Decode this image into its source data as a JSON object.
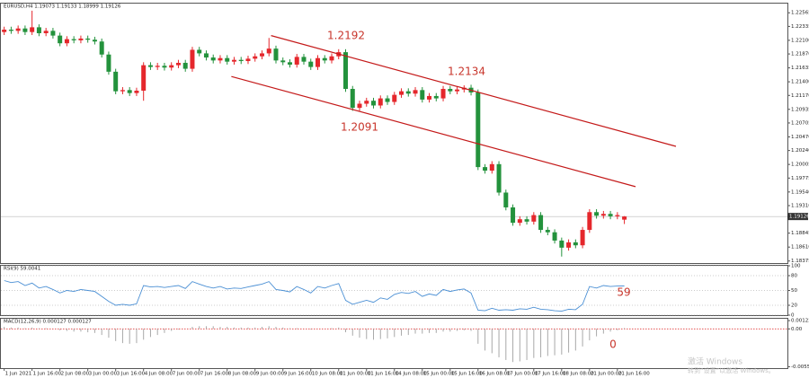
{
  "chart_data": [
    {
      "type": "candlestick",
      "title": "EURUSD,H4  1.19073 1.19133 1.18999 1.19126",
      "x": [
        "1 Jun 2021",
        null,
        null,
        null,
        "1 Jun 16:00",
        null,
        null,
        null,
        "2 Jun 08:00",
        null,
        null,
        null,
        "3 Jun 00:00",
        null,
        null,
        null,
        "3 Jun 16:00",
        null,
        null,
        null,
        "4 Jun 08:00",
        null,
        null,
        null,
        "7 Jun 00:00",
        null,
        null,
        null,
        "7 Jun 16:00",
        null,
        null,
        null,
        "8 Jun 08:00",
        null,
        null,
        null,
        "9 Jun 00:00",
        null,
        null,
        null,
        "9 Jun 16:00",
        null,
        null,
        null,
        "10 Jun 08:00",
        null,
        null,
        null,
        "11 Jun 00:00",
        null,
        null,
        null,
        "11 Jun 16:00",
        null,
        null,
        null,
        "14 Jun 08:00",
        null,
        null,
        null,
        "15 Jun 00:00",
        null,
        null,
        null,
        "15 Jun 16:00",
        null,
        null,
        null,
        "16 Jun 08:00",
        null,
        null,
        null,
        "17 Jun 00:00",
        null,
        null,
        null,
        "17 Jun 16:00",
        null,
        null,
        null,
        "18 Jun 08:00",
        null,
        null,
        null,
        "21 Jun 00:00",
        null,
        null,
        null,
        "21 Jun 16:00",
        null
      ],
      "open": [
        1.2224,
        1.2228,
        1.2226,
        1.223,
        1.2224,
        1.2232,
        1.2222,
        1.2226,
        1.2218,
        1.2205,
        1.2212,
        1.221,
        1.2213,
        1.2211,
        1.2208,
        1.2186,
        1.2157,
        1.2124,
        1.2126,
        1.2121,
        1.2125,
        1.2168,
        1.2165,
        1.2167,
        1.2164,
        1.2168,
        1.2172,
        1.2162,
        1.2194,
        1.2188,
        1.2181,
        1.2176,
        1.218,
        1.2174,
        1.2177,
        1.2175,
        1.2179,
        1.2183,
        1.2188,
        1.2196,
        1.2176,
        1.2173,
        1.2169,
        1.2182,
        1.2174,
        1.2165,
        1.218,
        1.2176,
        1.2183,
        1.219,
        1.2128,
        1.2096,
        1.2103,
        1.2108,
        1.21,
        1.2112,
        1.2106,
        1.2118,
        1.2124,
        1.212,
        1.2126,
        1.211,
        1.2116,
        1.2112,
        1.2128,
        1.2124,
        1.2127,
        1.213,
        1.2122,
        1.1996,
        1.199,
        1.2001,
        1.1953,
        1.1928,
        1.1902,
        1.1908,
        1.1904,
        1.1915,
        1.189,
        1.1886,
        1.1872,
        1.186,
        1.1869,
        1.1864,
        1.189,
        1.192,
        1.1914,
        1.1917,
        1.1913,
        1.19073
      ],
      "high": [
        1.2233,
        1.2233,
        1.2235,
        1.2235,
        1.226,
        1.2237,
        1.2231,
        1.2231,
        1.2223,
        1.2217,
        1.2217,
        1.2218,
        1.2218,
        1.2216,
        1.2213,
        1.2191,
        1.2162,
        1.2131,
        1.2131,
        1.213,
        1.2173,
        1.2173,
        1.2172,
        1.2172,
        1.2173,
        1.2177,
        1.2177,
        1.2199,
        1.2199,
        1.2193,
        1.2186,
        1.2185,
        1.2185,
        1.2182,
        1.2182,
        1.2184,
        1.2188,
        1.2193,
        1.2214,
        1.2201,
        1.2181,
        1.2178,
        1.2187,
        1.2187,
        1.2179,
        1.2185,
        1.2185,
        1.2188,
        1.2195,
        1.2195,
        1.2133,
        1.2108,
        1.2113,
        1.2113,
        1.2117,
        1.2117,
        1.2123,
        1.2129,
        1.2129,
        1.2131,
        1.2131,
        1.2121,
        1.2121,
        1.2133,
        1.2133,
        1.2132,
        1.2134,
        1.2135,
        1.2127,
        1.2001,
        1.2006,
        1.2006,
        1.1958,
        1.1933,
        1.1913,
        1.1913,
        1.192,
        1.192,
        1.1895,
        1.1891,
        1.1877,
        1.1874,
        1.1874,
        1.1895,
        1.1925,
        1.1925,
        1.1922,
        1.1922,
        1.192,
        1.19133
      ],
      "low": [
        1.2219,
        1.2221,
        1.2221,
        1.2219,
        1.2219,
        1.2217,
        1.2217,
        1.2213,
        1.22,
        1.22,
        1.2205,
        1.2205,
        1.2206,
        1.2203,
        1.2181,
        1.2152,
        1.2119,
        1.2119,
        1.2116,
        1.2116,
        1.2108,
        1.216,
        1.216,
        1.2159,
        1.2159,
        1.2163,
        1.2157,
        1.2157,
        1.2183,
        1.2176,
        1.2171,
        1.2171,
        1.2169,
        1.2169,
        1.217,
        1.217,
        1.2174,
        1.2178,
        1.2183,
        1.2171,
        1.2168,
        1.2164,
        1.2164,
        1.2169,
        1.216,
        1.216,
        1.2171,
        1.2171,
        1.2178,
        1.2123,
        1.2091,
        1.2091,
        1.2098,
        1.2095,
        1.2095,
        1.2101,
        1.2101,
        1.2113,
        1.2115,
        1.2115,
        1.2105,
        1.2105,
        1.2107,
        1.2107,
        1.2119,
        1.2119,
        1.2122,
        1.2117,
        1.1991,
        1.1985,
        1.1985,
        1.1948,
        1.1923,
        1.1897,
        1.1897,
        1.1899,
        1.1899,
        1.1885,
        1.1881,
        1.1867,
        1.1845,
        1.1855,
        1.1859,
        1.1859,
        1.1885,
        1.1909,
        1.1909,
        1.1908,
        1.1908,
        1.18999
      ],
      "close": [
        1.2228,
        1.2226,
        1.223,
        1.2224,
        1.2232,
        1.2222,
        1.2226,
        1.2218,
        1.2205,
        1.2212,
        1.221,
        1.2213,
        1.2211,
        1.2208,
        1.2186,
        1.2157,
        1.2124,
        1.2126,
        1.2121,
        1.2125,
        1.2168,
        1.2165,
        1.2167,
        1.2164,
        1.2168,
        1.2172,
        1.2162,
        1.2194,
        1.2188,
        1.2181,
        1.2176,
        1.218,
        1.2174,
        1.2177,
        1.2175,
        1.2179,
        1.2183,
        1.2188,
        1.2196,
        1.2176,
        1.2173,
        1.2169,
        1.2182,
        1.2174,
        1.2165,
        1.218,
        1.2176,
        1.2183,
        1.219,
        1.2128,
        1.2096,
        1.2103,
        1.2108,
        1.21,
        1.2112,
        1.2106,
        1.2118,
        1.2124,
        1.212,
        1.2126,
        1.211,
        1.2116,
        1.2112,
        1.2128,
        1.2124,
        1.2127,
        1.213,
        1.2122,
        1.1996,
        1.199,
        1.2001,
        1.1953,
        1.1928,
        1.1902,
        1.1908,
        1.1904,
        1.1915,
        1.189,
        1.1886,
        1.1872,
        1.186,
        1.1869,
        1.1864,
        1.189,
        1.192,
        1.1914,
        1.1917,
        1.1913,
        1.1915,
        1.19126
      ],
      "up_color": "#e5272c",
      "down_color": "#23923c",
      "xlim": [
        -0.6,
        112.4
      ],
      "ylim": [
        1.1834,
        1.2272
      ],
      "yticks": [
        {
          "value": 1.22565,
          "label": "1.22565"
        },
        {
          "value": 1.22335,
          "label": "1.22335"
        },
        {
          "value": 1.221,
          "label": "1.22100"
        },
        {
          "value": 1.2187,
          "label": "1.21870"
        },
        {
          "value": 1.21635,
          "label": "1.21635"
        },
        {
          "value": 1.214,
          "label": "1.21400"
        },
        {
          "value": 1.2117,
          "label": "1.21170"
        },
        {
          "value": 1.20935,
          "label": "1.20935"
        },
        {
          "value": 1.20705,
          "label": "1.20705"
        },
        {
          "value": 1.2047,
          "label": "1.20470"
        },
        {
          "value": 1.2024,
          "label": "1.20240"
        },
        {
          "value": 1.20005,
          "label": "1.20005"
        },
        {
          "value": 1.19775,
          "label": "1.19775"
        },
        {
          "value": 1.1954,
          "label": "1.19540"
        },
        {
          "value": 1.1931,
          "label": "1.19310"
        },
        {
          "value": 1.18845,
          "label": "1.18845"
        },
        {
          "value": 1.1861,
          "label": "1.18610"
        },
        {
          "value": 1.18375,
          "label": "1.18375"
        }
      ],
      "last_price": {
        "value": 1.19126,
        "label": "1.19126"
      },
      "trendlines": [
        {
          "x": [
            38.3,
            96.4
          ],
          "y": [
            1.2218,
            1.2031
          ]
        },
        {
          "x": [
            32.6,
            90.6
          ],
          "y": [
            1.2149,
            1.1963
          ]
        }
      ],
      "trendline_color": "#c41a1a",
      "annotations": [
        "1.2192",
        "1.2134",
        "1.2091"
      ]
    },
    {
      "type": "line",
      "title": "RSI(9) 59.0041",
      "values": [
        70,
        66,
        68,
        60,
        65,
        55,
        58,
        52,
        45,
        50,
        48,
        52,
        50,
        48,
        38,
        28,
        20,
        22,
        20,
        23,
        60,
        57,
        58,
        56,
        58,
        60,
        54,
        68,
        63,
        58,
        55,
        58,
        53,
        55,
        54,
        57,
        60,
        63,
        68,
        52,
        50,
        47,
        58,
        52,
        45,
        58,
        55,
        60,
        64,
        30,
        22,
        26,
        30,
        26,
        35,
        32,
        42,
        46,
        44,
        48,
        38,
        43,
        40,
        52,
        48,
        51,
        53,
        45,
        10,
        9,
        14,
        10,
        11,
        10,
        13,
        12,
        16,
        12,
        11,
        9,
        8,
        12,
        11,
        22,
        58,
        55,
        60,
        58,
        59,
        59.0041
      ],
      "color": "#4a8fd4",
      "ylim": [
        0,
        100
      ],
      "yticks": [
        100,
        80,
        50,
        20,
        0
      ],
      "grid": true,
      "annotations": [
        "59"
      ]
    },
    {
      "type": "bar",
      "title": "MACD(12,26,9) 0.000127 0.000127",
      "values": [
        0.0003,
        0.0002,
        0.0002,
        0.0001,
        0.0002,
        0.0001,
        0.0001,
        0,
        -0.0002,
        -0.0003,
        -0.0004,
        -0.0004,
        -0.0005,
        -0.0006,
        -0.0009,
        -0.0013,
        -0.0018,
        -0.0021,
        -0.0022,
        -0.0021,
        -0.0016,
        -0.0012,
        -0.0009,
        -0.0006,
        -0.0003,
        -0.0001,
        0,
        0.0003,
        0.0004,
        0.0004,
        0.0004,
        0.0003,
        0.0003,
        0.0002,
        0.0002,
        0.0002,
        0.0002,
        0.0003,
        0.0004,
        0.0003,
        0.0002,
        0.0001,
        0.0001,
        0,
        -0.0001,
        0,
        0,
        0.0001,
        0.0002,
        -0.0005,
        -0.001,
        -0.0013,
        -0.0015,
        -0.0016,
        -0.0015,
        -0.0014,
        -0.0012,
        -0.001,
        -0.0009,
        -0.0007,
        -0.0007,
        -0.0006,
        -0.0006,
        -0.0004,
        -0.0004,
        -0.0003,
        -0.0002,
        -0.0003,
        -0.0022,
        -0.0032,
        -0.0036,
        -0.0042,
        -0.0046,
        -0.0049,
        -0.0048,
        -0.0046,
        -0.0043,
        -0.0042,
        -0.004,
        -0.0039,
        -0.0038,
        -0.0035,
        -0.0032,
        -0.0026,
        -0.0017,
        -0.0011,
        -0.0007,
        -0.0004,
        -0.0002,
        0.000127
      ],
      "color": "#a8a8a8",
      "zero_color": "#e03a3a",
      "ylim": [
        -0.0058,
        0.0015
      ],
      "yticks": [
        0.001223,
        {
          "value": 0,
          "label": "0.00"
        },
        -0.005589
      ],
      "annotations": [
        "0"
      ]
    }
  ],
  "watermark": [
    "激活 Windows",
    "转到“设置”以激活 Windows。"
  ]
}
